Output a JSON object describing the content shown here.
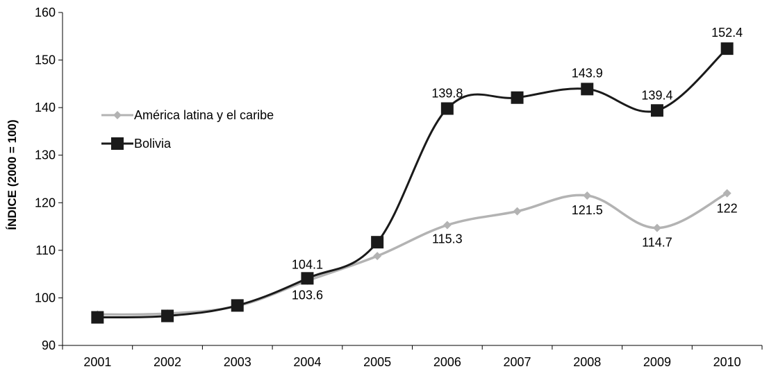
{
  "chart_data": {
    "type": "line",
    "title": "",
    "xlabel": "",
    "ylabel": "ÍNDICE (2000 = 100)",
    "ylim": [
      90,
      160
    ],
    "yticks": [
      90,
      100,
      110,
      120,
      130,
      140,
      150,
      160
    ],
    "categories": [
      "2001",
      "2002",
      "2003",
      "2004",
      "2005",
      "2006",
      "2007",
      "2008",
      "2009",
      "2010"
    ],
    "grid": false,
    "legend_position": "left",
    "series": [
      {
        "name": "América latina y el caribe",
        "color": "#b3b3b3",
        "marker": "diamond",
        "values": [
          96.5,
          96.7,
          98.3,
          103.6,
          108.8,
          115.3,
          118.2,
          121.5,
          114.7,
          122.0
        ],
        "labels": [
          null,
          null,
          null,
          "103.6",
          null,
          "115.3",
          null,
          "121.5",
          "114.7",
          "122"
        ]
      },
      {
        "name": "Bolivia",
        "color": "#1a1a1a",
        "marker": "square",
        "values": [
          95.9,
          96.2,
          98.4,
          104.1,
          111.7,
          139.8,
          142.1,
          143.9,
          139.4,
          152.4
        ],
        "labels": [
          null,
          null,
          null,
          "104.1",
          null,
          "139.8",
          null,
          "143.9",
          "139.4",
          "152.4"
        ]
      }
    ]
  }
}
